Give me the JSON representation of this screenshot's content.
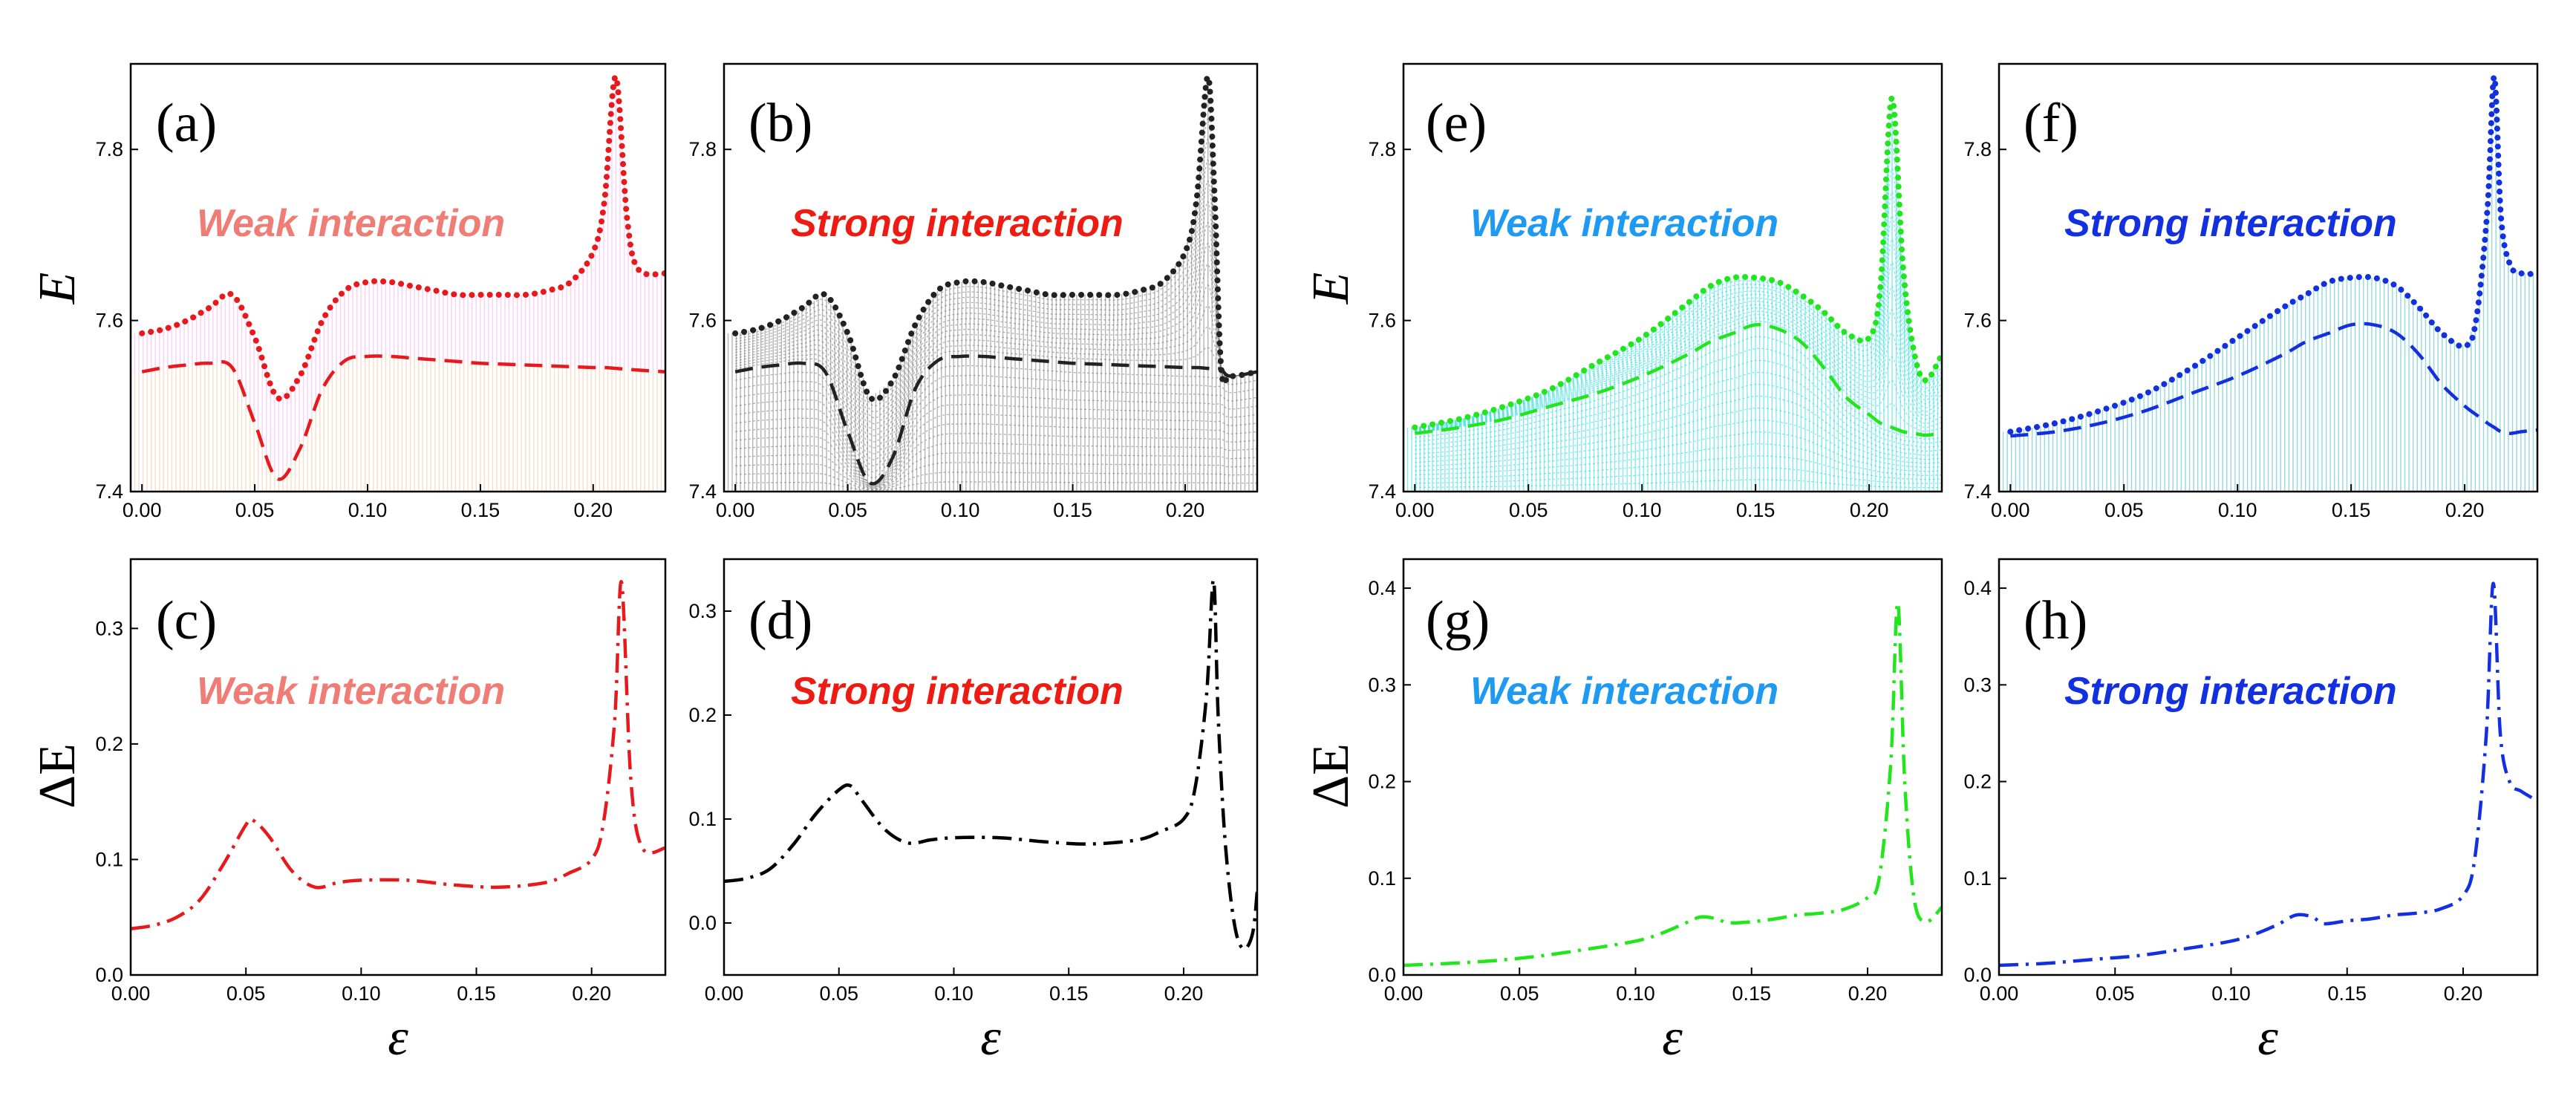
{
  "figure": {
    "colors": {
      "a": "#e8191c",
      "b": "#222222",
      "c": "#e8191c",
      "d": "#000000",
      "e": "#22e61c",
      "f": "#1230e0",
      "g": "#22e61c",
      "h": "#1230e0",
      "annot_pink": "#f07c76",
      "annot_red": "#ee1b12",
      "annot_cyan": "#1f9af2",
      "annot_blue": "#1230e0",
      "fill_pink": "#f6a8f2",
      "fill_orange": "#f3c29c",
      "fill_grey": "#777777",
      "fill_cyan": "#20d8d8",
      "fill_teal": "#3fb6c6"
    }
  },
  "chart_data": [
    {
      "id": "a",
      "type": "line",
      "panel_label": "(a)",
      "annotation": "Weak interaction",
      "ylabel": "E",
      "xlabel": "",
      "xlim": [
        -0.005,
        0.232
      ],
      "ylim": [
        7.4,
        7.9
      ],
      "xticks": [
        "0.00",
        "0.05",
        "0.10",
        "0.15",
        "0.20"
      ],
      "yticks": [
        "7.4",
        "7.6",
        "7.8"
      ],
      "x": [
        0.0,
        0.01,
        0.02,
        0.03,
        0.04,
        0.05,
        0.06,
        0.07,
        0.08,
        0.09,
        0.1,
        0.11,
        0.12,
        0.13,
        0.14,
        0.15,
        0.16,
        0.17,
        0.18,
        0.19,
        0.2,
        0.205,
        0.21,
        0.215,
        0.22,
        0.232
      ],
      "series": [
        {
          "name": "upper",
          "style": "dotted",
          "values": [
            7.585,
            7.59,
            7.6,
            7.615,
            7.63,
            7.58,
            7.51,
            7.535,
            7.6,
            7.635,
            7.645,
            7.645,
            7.64,
            7.635,
            7.63,
            7.63,
            7.63,
            7.63,
            7.635,
            7.645,
            7.68,
            7.74,
            7.885,
            7.72,
            7.66,
            7.655
          ]
        },
        {
          "name": "lower",
          "style": "dashed",
          "values": [
            7.54,
            7.545,
            7.548,
            7.55,
            7.545,
            7.48,
            7.415,
            7.45,
            7.52,
            7.553,
            7.558,
            7.558,
            7.556,
            7.554,
            7.552,
            7.55,
            7.549,
            7.548,
            7.547,
            7.546,
            7.545,
            7.545,
            7.544,
            7.543,
            7.542,
            7.54
          ]
        }
      ]
    },
    {
      "id": "b",
      "type": "line",
      "panel_label": "(b)",
      "annotation": "Strong interaction",
      "ylabel": "",
      "xlabel": "",
      "xlim": [
        -0.005,
        0.232
      ],
      "ylim": [
        7.4,
        7.9
      ],
      "xticks": [
        "0.00",
        "0.05",
        "0.10",
        "0.15",
        "0.20"
      ],
      "yticks": [
        "7.4",
        "7.6",
        "7.8"
      ],
      "x": [
        0.0,
        0.01,
        0.02,
        0.03,
        0.04,
        0.05,
        0.06,
        0.07,
        0.08,
        0.09,
        0.1,
        0.11,
        0.12,
        0.13,
        0.14,
        0.15,
        0.16,
        0.17,
        0.18,
        0.19,
        0.2,
        0.205,
        0.21,
        0.213,
        0.216,
        0.22,
        0.232
      ],
      "series": [
        {
          "name": "upper",
          "style": "dotted",
          "values": [
            7.585,
            7.59,
            7.6,
            7.615,
            7.63,
            7.585,
            7.51,
            7.53,
            7.595,
            7.635,
            7.645,
            7.645,
            7.64,
            7.635,
            7.63,
            7.63,
            7.63,
            7.63,
            7.635,
            7.645,
            7.68,
            7.74,
            7.885,
            7.75,
            7.545,
            7.535,
            7.54
          ]
        },
        {
          "name": "lower",
          "style": "dashed",
          "values": [
            7.54,
            7.545,
            7.548,
            7.55,
            7.54,
            7.47,
            7.41,
            7.44,
            7.52,
            7.553,
            7.558,
            7.558,
            7.556,
            7.554,
            7.552,
            7.55,
            7.549,
            7.548,
            7.547,
            7.546,
            7.545,
            7.545,
            7.544,
            7.543,
            7.543,
            7.535,
            7.54
          ]
        }
      ]
    },
    {
      "id": "c",
      "type": "line",
      "panel_label": "(c)",
      "annotation": "Weak interaction",
      "ylabel": "ΔE",
      "xlabel": "ε",
      "xlim": [
        0.0,
        0.232
      ],
      "ylim": [
        0.0,
        0.36
      ],
      "xticks": [
        "0.00",
        "0.05",
        "0.10",
        "0.15",
        "0.20"
      ],
      "yticks": [
        "0.0",
        "0.1",
        "0.2",
        "0.3"
      ],
      "x": [
        0.0,
        0.01,
        0.02,
        0.03,
        0.04,
        0.05,
        0.053,
        0.06,
        0.07,
        0.08,
        0.09,
        0.1,
        0.12,
        0.14,
        0.16,
        0.18,
        0.19,
        0.2,
        0.205,
        0.21,
        0.213,
        0.217,
        0.222,
        0.232
      ],
      "series": [
        {
          "name": "delta",
          "style": "dashdot",
          "values": [
            0.04,
            0.043,
            0.05,
            0.065,
            0.095,
            0.13,
            0.134,
            0.12,
            0.09,
            0.076,
            0.08,
            0.082,
            0.082,
            0.078,
            0.076,
            0.08,
            0.088,
            0.1,
            0.13,
            0.22,
            0.34,
            0.17,
            0.11,
            0.11
          ]
        }
      ]
    },
    {
      "id": "d",
      "type": "line",
      "panel_label": "(d)",
      "annotation": "Strong interaction",
      "ylabel": "",
      "xlabel": "ε",
      "xlim": [
        0.0,
        0.232
      ],
      "ylim": [
        -0.05,
        0.35
      ],
      "xticks": [
        "0.00",
        "0.05",
        "0.10",
        "0.15",
        "0.20"
      ],
      "yticks": [
        "0.0",
        "0.1",
        "0.2",
        "0.3"
      ],
      "x": [
        0.0,
        0.01,
        0.02,
        0.03,
        0.04,
        0.05,
        0.055,
        0.06,
        0.07,
        0.08,
        0.09,
        0.1,
        0.12,
        0.14,
        0.16,
        0.18,
        0.19,
        0.2,
        0.205,
        0.21,
        0.213,
        0.215,
        0.218,
        0.222,
        0.226,
        0.23,
        0.232
      ],
      "series": [
        {
          "name": "delta",
          "style": "dashdot",
          "values": [
            0.04,
            0.043,
            0.052,
            0.075,
            0.105,
            0.128,
            0.132,
            0.118,
            0.09,
            0.077,
            0.08,
            0.082,
            0.082,
            0.078,
            0.076,
            0.08,
            0.088,
            0.1,
            0.13,
            0.22,
            0.33,
            0.2,
            0.08,
            0.0,
            -0.025,
            -0.01,
            0.03
          ]
        }
      ]
    },
    {
      "id": "e",
      "type": "line",
      "panel_label": "(e)",
      "annotation": "Weak interaction",
      "ylabel": "E",
      "xlabel": "",
      "xlim": [
        -0.005,
        0.232
      ],
      "ylim": [
        7.4,
        7.9
      ],
      "xticks": [
        "0.00",
        "0.05",
        "0.10",
        "0.15",
        "0.20"
      ],
      "yticks": [
        "7.4",
        "7.6",
        "7.8"
      ],
      "x": [
        0.0,
        0.02,
        0.04,
        0.06,
        0.08,
        0.1,
        0.12,
        0.13,
        0.14,
        0.15,
        0.16,
        0.17,
        0.18,
        0.19,
        0.2,
        0.205,
        0.21,
        0.215,
        0.22,
        0.225,
        0.232
      ],
      "series": [
        {
          "name": "upper",
          "style": "dotted",
          "values": [
            7.475,
            7.485,
            7.5,
            7.52,
            7.55,
            7.58,
            7.62,
            7.64,
            7.65,
            7.65,
            7.645,
            7.63,
            7.61,
            7.585,
            7.58,
            7.64,
            7.86,
            7.66,
            7.56,
            7.53,
            7.56
          ]
        },
        {
          "name": "lower",
          "style": "dashed",
          "values": [
            7.468,
            7.475,
            7.485,
            7.5,
            7.515,
            7.535,
            7.56,
            7.575,
            7.585,
            7.595,
            7.59,
            7.575,
            7.545,
            7.51,
            7.49,
            7.48,
            7.475,
            7.47,
            7.468,
            7.466,
            7.468
          ]
        }
      ]
    },
    {
      "id": "f",
      "type": "line",
      "panel_label": "(f)",
      "annotation": "Strong interaction",
      "ylabel": "",
      "xlabel": "",
      "xlim": [
        -0.005,
        0.232
      ],
      "ylim": [
        7.4,
        7.9
      ],
      "xticks": [
        "0.00",
        "0.05",
        "0.10",
        "0.15",
        "0.20"
      ],
      "yticks": [
        "7.4",
        "7.6",
        "7.8"
      ],
      "x": [
        0.0,
        0.02,
        0.04,
        0.06,
        0.08,
        0.1,
        0.12,
        0.13,
        0.14,
        0.15,
        0.16,
        0.17,
        0.18,
        0.19,
        0.2,
        0.205,
        0.21,
        0.213,
        0.216,
        0.22,
        0.225,
        0.232
      ],
      "series": [
        {
          "name": "upper",
          "style": "dotted",
          "values": [
            7.47,
            7.48,
            7.495,
            7.515,
            7.545,
            7.58,
            7.615,
            7.63,
            7.645,
            7.65,
            7.65,
            7.64,
            7.615,
            7.585,
            7.57,
            7.6,
            7.73,
            7.885,
            7.72,
            7.665,
            7.655,
            7.655
          ]
        },
        {
          "name": "lower",
          "style": "dashed",
          "values": [
            7.465,
            7.47,
            7.48,
            7.495,
            7.515,
            7.535,
            7.56,
            7.575,
            7.585,
            7.595,
            7.595,
            7.585,
            7.56,
            7.525,
            7.5,
            7.49,
            7.48,
            7.475,
            7.47,
            7.468,
            7.47,
            7.472
          ]
        }
      ]
    },
    {
      "id": "g",
      "type": "line",
      "panel_label": "(g)",
      "annotation": "Weak interaction",
      "ylabel": "ΔE",
      "xlabel": "ε",
      "xlim": [
        0.0,
        0.232
      ],
      "ylim": [
        0.0,
        0.43
      ],
      "xticks": [
        "0.00",
        "0.05",
        "0.10",
        "0.15",
        "0.20"
      ],
      "yticks": [
        "0.0",
        "0.1",
        "0.2",
        "0.3",
        "0.4"
      ],
      "x": [
        0.0,
        0.02,
        0.04,
        0.06,
        0.08,
        0.1,
        0.11,
        0.12,
        0.128,
        0.135,
        0.14,
        0.15,
        0.16,
        0.17,
        0.18,
        0.19,
        0.2,
        0.205,
        0.21,
        0.213,
        0.216,
        0.22,
        0.225,
        0.232
      ],
      "series": [
        {
          "name": "delta",
          "style": "dashdot",
          "values": [
            0.01,
            0.012,
            0.015,
            0.02,
            0.027,
            0.035,
            0.042,
            0.052,
            0.06,
            0.058,
            0.054,
            0.055,
            0.058,
            0.062,
            0.064,
            0.068,
            0.08,
            0.1,
            0.22,
            0.385,
            0.2,
            0.08,
            0.055,
            0.07
          ]
        }
      ]
    },
    {
      "id": "h",
      "type": "line",
      "panel_label": "(h)",
      "annotation": "Strong interaction",
      "ylabel": "",
      "xlabel": "ε",
      "xlim": [
        0.0,
        0.232
      ],
      "ylim": [
        0.0,
        0.43
      ],
      "xticks": [
        "0.00",
        "0.05",
        "0.10",
        "0.15",
        "0.20"
      ],
      "yticks": [
        "0.0",
        "0.1",
        "0.2",
        "0.3",
        "0.4"
      ],
      "x": [
        0.0,
        0.02,
        0.04,
        0.06,
        0.08,
        0.1,
        0.11,
        0.12,
        0.128,
        0.135,
        0.14,
        0.15,
        0.16,
        0.17,
        0.18,
        0.19,
        0.2,
        0.205,
        0.21,
        0.213,
        0.216,
        0.22,
        0.225,
        0.232
      ],
      "series": [
        {
          "name": "delta",
          "style": "dashdot",
          "values": [
            0.01,
            0.012,
            0.016,
            0.02,
            0.027,
            0.035,
            0.042,
            0.052,
            0.062,
            0.06,
            0.053,
            0.056,
            0.058,
            0.062,
            0.064,
            0.068,
            0.082,
            0.12,
            0.25,
            0.405,
            0.25,
            0.2,
            0.19,
            0.18
          ]
        }
      ]
    }
  ]
}
